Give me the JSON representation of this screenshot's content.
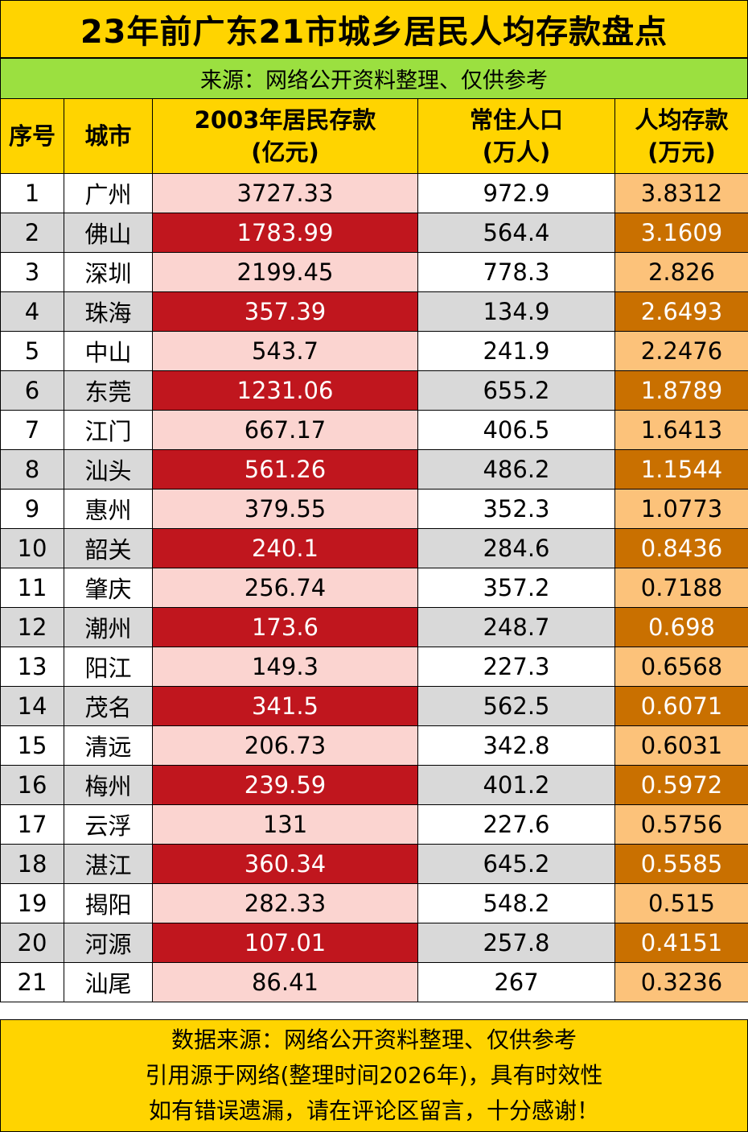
{
  "title": "23年前广东21市城乡居民人均存款盘点",
  "subtitle": "来源：网络公开资料整理、仅供参考",
  "headers": {
    "rank": "序号",
    "city": "城市",
    "deposit_line1": "2003年居民存款",
    "deposit_line2": "(亿元)",
    "population_line1": "常住人口",
    "population_line2": "(万人)",
    "per_capita_line1": "人均存款",
    "per_capita_line2": "(万元)"
  },
  "rows": [
    {
      "rank": "1",
      "city": "广州",
      "deposit": "3727.33",
      "population": "972.9",
      "per_capita": "3.8312"
    },
    {
      "rank": "2",
      "city": "佛山",
      "deposit": "1783.99",
      "population": "564.4",
      "per_capita": "3.1609"
    },
    {
      "rank": "3",
      "city": "深圳",
      "deposit": "2199.45",
      "population": "778.3",
      "per_capita": "2.826"
    },
    {
      "rank": "4",
      "city": "珠海",
      "deposit": "357.39",
      "population": "134.9",
      "per_capita": "2.6493"
    },
    {
      "rank": "5",
      "city": "中山",
      "deposit": "543.7",
      "population": "241.9",
      "per_capita": "2.2476"
    },
    {
      "rank": "6",
      "city": "东莞",
      "deposit": "1231.06",
      "population": "655.2",
      "per_capita": "1.8789"
    },
    {
      "rank": "7",
      "city": "江门",
      "deposit": "667.17",
      "population": "406.5",
      "per_capita": "1.6413"
    },
    {
      "rank": "8",
      "city": "汕头",
      "deposit": "561.26",
      "population": "486.2",
      "per_capita": "1.1544"
    },
    {
      "rank": "9",
      "city": "惠州",
      "deposit": "379.55",
      "population": "352.3",
      "per_capita": "1.0773"
    },
    {
      "rank": "10",
      "city": "韶关",
      "deposit": "240.1",
      "population": "284.6",
      "per_capita": "0.8436"
    },
    {
      "rank": "11",
      "city": "肇庆",
      "deposit": "256.74",
      "population": "357.2",
      "per_capita": "0.7188"
    },
    {
      "rank": "12",
      "city": "潮州",
      "deposit": "173.6",
      "population": "248.7",
      "per_capita": "0.698"
    },
    {
      "rank": "13",
      "city": "阳江",
      "deposit": "149.3",
      "population": "227.3",
      "per_capita": "0.6568"
    },
    {
      "rank": "14",
      "city": "茂名",
      "deposit": "341.5",
      "population": "562.5",
      "per_capita": "0.6071"
    },
    {
      "rank": "15",
      "city": "清远",
      "deposit": "206.73",
      "population": "342.8",
      "per_capita": "0.6031"
    },
    {
      "rank": "16",
      "city": "梅州",
      "deposit": "239.59",
      "population": "401.2",
      "per_capita": "0.5972"
    },
    {
      "rank": "17",
      "city": "云浮",
      "deposit": "131",
      "population": "227.6",
      "per_capita": "0.5756"
    },
    {
      "rank": "18",
      "city": "湛江",
      "deposit": "360.34",
      "population": "645.2",
      "per_capita": "0.5585"
    },
    {
      "rank": "19",
      "city": "揭阳",
      "deposit": "282.33",
      "population": "548.2",
      "per_capita": "0.515"
    },
    {
      "rank": "20",
      "city": "河源",
      "deposit": "107.01",
      "population": "257.8",
      "per_capita": "0.4151"
    },
    {
      "rank": "21",
      "city": "汕尾",
      "deposit": "86.41",
      "population": "267",
      "per_capita": "0.3236"
    }
  ],
  "footer": {
    "line1": "数据来源：网络公开资料整理、仅供参考",
    "line2": "引用源于网络(整理时间2026年)，具有时效性",
    "line3": "如有错误遗漏，请在评论区留言，十分感谢！"
  },
  "colors": {
    "header_yellow": "#ffd400",
    "subtitle_green": "#9be040",
    "deposit_light": "#fbd4d0",
    "deposit_dark": "#c0161e",
    "per_capita_light": "#fcc27a",
    "per_capita_dark": "#c97000",
    "row_gray": "#d9d9d9"
  }
}
